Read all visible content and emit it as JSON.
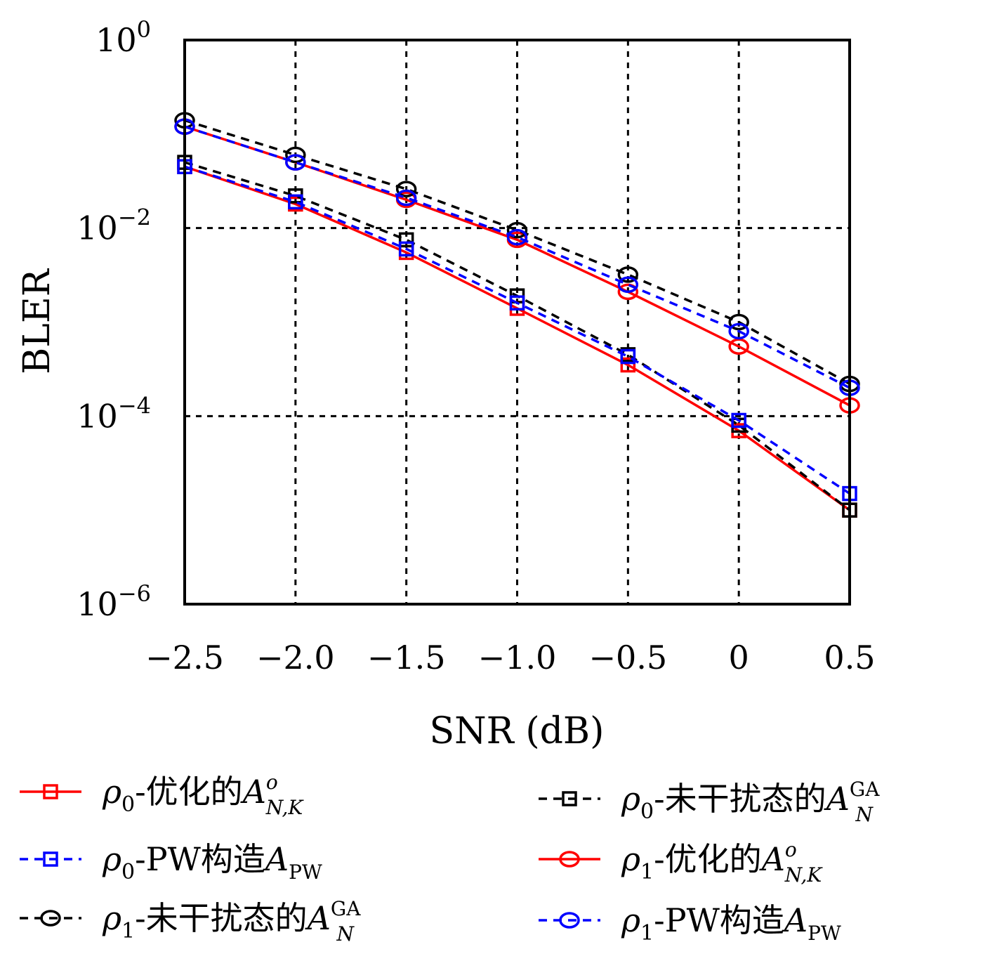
{
  "chart_data": {
    "type": "line",
    "title": "",
    "xlabel": "SNR (dB)",
    "ylabel": "BLER",
    "y_scale": "log",
    "xlim": [
      -2.5,
      0.5
    ],
    "ylim": [
      1e-06,
      1
    ],
    "grid": true,
    "legend_position": "bottom",
    "x": [
      -2.5,
      -2.0,
      -1.5,
      -1.0,
      -0.5,
      0,
      0.5
    ],
    "x_tick_labels": [
      "−2.5",
      "−2.0",
      "−1.5",
      "−1.0",
      "−0.5",
      "0",
      "0.5"
    ],
    "y_ticks": [
      {
        "base": "10",
        "exp": "0",
        "value": 1
      },
      {
        "base": "10",
        "exp": "−2",
        "value": 0.01
      },
      {
        "base": "10",
        "exp": "−4",
        "value": 0.0001
      },
      {
        "base": "10",
        "exp": "−6",
        "value": 1e-06
      }
    ],
    "series": [
      {
        "rho_sub": "0",
        "name": "-优化的",
        "math": "A",
        "math_sup": "o",
        "math_sub": "N,K",
        "color": "#ff0000",
        "dash": "solid",
        "marker": "square",
        "values": [
          0.045,
          0.018,
          0.0055,
          0.0014,
          0.00035,
          7e-05,
          1e-05
        ]
      },
      {
        "rho_sub": "0",
        "name": "-未干扰态的",
        "math": "A",
        "math_sup": "GA",
        "math_sub": "N",
        "color": "#000000",
        "dash": "dashed",
        "marker": "square",
        "values": [
          0.05,
          0.022,
          0.0075,
          0.0019,
          0.00045,
          8e-05,
          1e-05
        ]
      },
      {
        "rho_sub": "0",
        "name": "-PW构造",
        "math": "A",
        "math_sup": "",
        "math_sub": "PW",
        "color": "#0000ff",
        "dash": "dashed",
        "marker": "square",
        "values": [
          0.045,
          0.019,
          0.006,
          0.0016,
          0.00043,
          9e-05,
          1.5e-05
        ]
      },
      {
        "rho_sub": "1",
        "name": "-优化的",
        "math": "A",
        "math_sup": "o",
        "math_sub": "N,K",
        "color": "#ff0000",
        "dash": "solid",
        "marker": "circle",
        "values": [
          0.12,
          0.05,
          0.02,
          0.0075,
          0.0021,
          0.00055,
          0.00013
        ]
      },
      {
        "rho_sub": "1",
        "name": "-未干扰态的",
        "math": "A",
        "math_sup": "GA",
        "math_sub": "N",
        "color": "#000000",
        "dash": "dashed",
        "marker": "circle",
        "values": [
          0.14,
          0.06,
          0.026,
          0.0095,
          0.0032,
          0.001,
          0.00022
        ]
      },
      {
        "rho_sub": "1",
        "name": "-PW构造",
        "math": "A",
        "math_sup": "",
        "math_sub": "PW",
        "color": "#0000ff",
        "dash": "dashed",
        "marker": "circle",
        "values": [
          0.12,
          0.05,
          0.021,
          0.008,
          0.0025,
          0.0008,
          0.0002
        ]
      }
    ]
  }
}
